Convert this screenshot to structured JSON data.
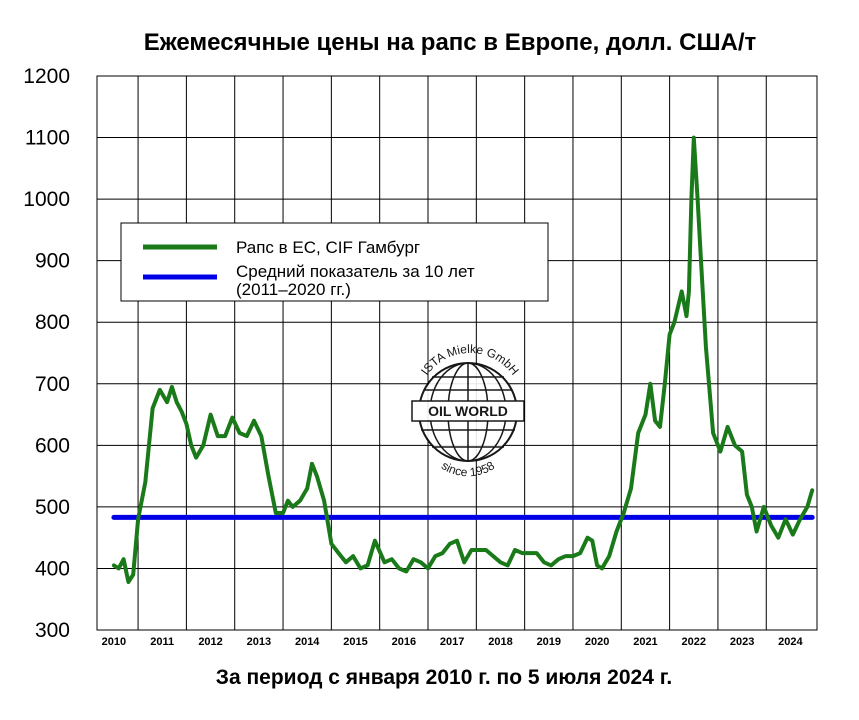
{
  "chart_data": {
    "type": "line",
    "title": "Ежемесячные цены на рапс в Европе, долл. США/т",
    "subtitle": "За период с января 2010 г. по 5 июля 2024 г.",
    "xlabel": "",
    "ylabel": "",
    "ylim": [
      300,
      1200
    ],
    "y_ticks": [
      "300",
      "400",
      "500",
      "600",
      "700",
      "800",
      "900",
      "1000",
      "1100",
      "1200"
    ],
    "x_ticks": [
      "2010",
      "2011",
      "2012",
      "2013",
      "2014",
      "2015",
      "2016",
      "2017",
      "2018",
      "2019",
      "2020",
      "2021",
      "2022",
      "2023",
      "2024"
    ],
    "grid": true,
    "legend_position": "upper-left",
    "legend": [
      {
        "label": "Рапс в ЕС, CIF Гамбург",
        "color": "#1a7a1a"
      },
      {
        "label": "Средний показатель за 10 лет",
        "label2": "(2011–2020 гг.)",
        "color": "#0000e6"
      }
    ],
    "series": [
      {
        "name": "Рапс в ЕС, CIF Гамбург",
        "color": "#1a7a1a",
        "x": [
          2010.0,
          2010.1,
          2010.2,
          2010.3,
          2010.4,
          2010.5,
          2010.65,
          2010.8,
          2010.95,
          2011.1,
          2011.2,
          2011.3,
          2011.4,
          2011.5,
          2011.6,
          2011.7,
          2011.85,
          2012.0,
          2012.15,
          2012.3,
          2012.45,
          2012.6,
          2012.75,
          2012.9,
          2013.05,
          2013.2,
          2013.35,
          2013.5,
          2013.6,
          2013.7,
          2013.85,
          2014.0,
          2014.1,
          2014.2,
          2014.35,
          2014.5,
          2014.65,
          2014.8,
          2014.95,
          2015.1,
          2015.25,
          2015.4,
          2015.6,
          2015.75,
          2015.9,
          2016.05,
          2016.2,
          2016.35,
          2016.5,
          2016.65,
          2016.8,
          2016.95,
          2017.1,
          2017.25,
          2017.4,
          2017.55,
          2017.7,
          2017.85,
          2018.0,
          2018.15,
          2018.3,
          2018.45,
          2018.6,
          2018.75,
          2018.9,
          2019.05,
          2019.2,
          2019.35,
          2019.5,
          2019.65,
          2019.8,
          2019.9,
          2020.0,
          2020.1,
          2020.25,
          2020.4,
          2020.55,
          2020.7,
          2020.85,
          2021.0,
          2021.1,
          2021.2,
          2021.3,
          2021.4,
          2021.5,
          2021.6,
          2021.75,
          2021.85,
          2021.9,
          2021.95,
          2022.0,
          2022.08,
          2022.15,
          2022.25,
          2022.4,
          2022.55,
          2022.7,
          2022.85,
          2023.0,
          2023.1,
          2023.2,
          2023.3,
          2023.45,
          2023.6,
          2023.75,
          2023.9,
          2024.05,
          2024.2,
          2024.35,
          2024.45
        ],
        "values": [
          405,
          400,
          415,
          378,
          390,
          480,
          540,
          660,
          690,
          670,
          695,
          670,
          655,
          635,
          600,
          580,
          600,
          650,
          615,
          615,
          645,
          620,
          615,
          640,
          615,
          550,
          490,
          490,
          510,
          500,
          510,
          530,
          570,
          550,
          510,
          440,
          425,
          410,
          420,
          400,
          405,
          445,
          410,
          415,
          400,
          395,
          415,
          410,
          400,
          420,
          425,
          440,
          445,
          410,
          430,
          430,
          430,
          420,
          410,
          405,
          430,
          425,
          425,
          425,
          410,
          405,
          415,
          420,
          420,
          425,
          450,
          445,
          405,
          400,
          420,
          460,
          490,
          530,
          620,
          650,
          700,
          640,
          630,
          700,
          780,
          800,
          850,
          810,
          850,
          1000,
          1100,
          1000,
          900,
          760,
          620,
          590,
          630,
          600,
          590,
          520,
          500,
          460,
          500,
          470,
          450,
          480,
          455,
          480,
          500,
          527
        ]
      },
      {
        "name": "Средний показатель за 10 лет",
        "color": "#0000e6",
        "x": [
          2010.0,
          2024.45
        ],
        "values": [
          483,
          483
        ]
      }
    ]
  },
  "watermark": {
    "brand": "OIL WORLD",
    "arc_top": "ISTA Mielke GmbH",
    "arc_bottom": "since 1958"
  }
}
